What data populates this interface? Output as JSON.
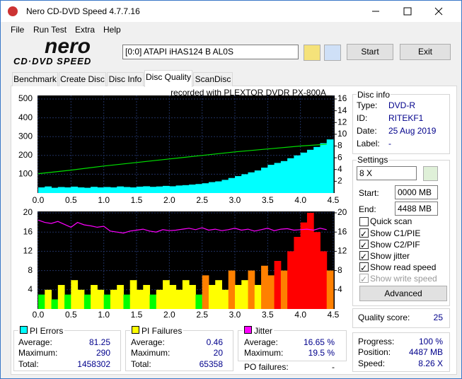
{
  "window": {
    "title": "Nero CD-DVD Speed 4.7.7.16"
  },
  "menu": [
    "File",
    "Run Test",
    "Extra",
    "Help"
  ],
  "toolbar": {
    "logo_top": "nero",
    "logo_bottom": "CD·DVD SPEED",
    "drive": "[0:0]  ATAPI iHAS124  B AL0S",
    "start": "Start",
    "exit": "Exit"
  },
  "tabs": [
    "Benchmark",
    "Create Disc",
    "Disc Info",
    "Disc Quality",
    "ScanDisc"
  ],
  "chart_data": [
    {
      "type": "combo",
      "title": "recorded with PLEXTOR  DVDR   PX-800A",
      "x": [
        0,
        0.1,
        0.2,
        0.3,
        0.4,
        0.5,
        0.6,
        0.7,
        0.8,
        0.9,
        1,
        1.1,
        1.2,
        1.3,
        1.4,
        1.5,
        1.6,
        1.7,
        1.8,
        1.9,
        2,
        2.1,
        2.2,
        2.3,
        2.4,
        2.5,
        2.6,
        2.7,
        2.8,
        2.9,
        3,
        3.1,
        3.2,
        3.3,
        3.4,
        3.5,
        3.6,
        3.7,
        3.8,
        3.9,
        4,
        4.1,
        4.2,
        4.3,
        4.4
      ],
      "series": [
        {
          "type": "bar",
          "color": "#00ffff",
          "values": [
            30,
            35,
            28,
            32,
            30,
            34,
            30,
            28,
            33,
            30,
            32,
            30,
            35,
            32,
            30,
            34,
            36,
            33,
            35,
            38,
            36,
            40,
            42,
            45,
            48,
            52,
            58,
            62,
            70,
            80,
            90,
            100,
            110,
            120,
            135,
            150,
            160,
            170,
            185,
            200,
            215,
            230,
            245,
            265,
            285
          ]
        },
        {
          "type": "line",
          "color": "#00e000",
          "axis": "y2",
          "x": [
            0,
            0.5,
            1,
            1.5,
            2,
            2.5,
            3,
            3.5,
            4,
            4.4
          ],
          "values": [
            3.3,
            3.9,
            4.6,
            5.2,
            5.8,
            6.4,
            7.0,
            7.5,
            8.0,
            8.3
          ]
        }
      ],
      "xlim": [
        0,
        4.5
      ],
      "xticks": [
        {
          "value": 0,
          "label": "0.0"
        },
        0.5,
        {
          "value": 1,
          "label": "1.0"
        },
        1.5,
        {
          "value": 2,
          "label": "2.0"
        },
        2.5,
        {
          "value": 3,
          "label": "3.0"
        },
        3.5,
        {
          "value": 4,
          "label": "4.0"
        },
        4.5
      ],
      "ylim": [
        0,
        500
      ],
      "yticks": [
        100,
        200,
        300,
        400,
        500
      ],
      "y2lim": [
        0,
        16
      ],
      "y2ticks": [
        2,
        4,
        6,
        8,
        10,
        12,
        14,
        16
      ],
      "grid": true
    },
    {
      "type": "combo",
      "x": [
        0,
        0.1,
        0.2,
        0.3,
        0.4,
        0.5,
        0.6,
        0.7,
        0.8,
        0.9,
        1,
        1.1,
        1.2,
        1.3,
        1.4,
        1.5,
        1.6,
        1.7,
        1.8,
        1.9,
        2,
        2.1,
        2.2,
        2.3,
        2.4,
        2.5,
        2.6,
        2.7,
        2.8,
        2.9,
        3,
        3.1,
        3.2,
        3.3,
        3.4,
        3.5,
        3.6,
        3.7,
        3.8,
        3.9,
        4,
        4.1,
        4.2,
        4.3,
        4.4
      ],
      "series": [
        {
          "type": "bar",
          "colors": [
            "#00ff00",
            "#ffff00",
            "#ff8000",
            "#ff0000"
          ],
          "values": [
            3,
            4,
            2,
            5,
            3,
            6,
            4,
            3,
            5,
            4,
            3,
            4,
            5,
            3,
            6,
            4,
            5,
            3,
            4,
            6,
            5,
            4,
            6,
            5,
            3,
            7,
            5,
            6,
            4,
            8,
            5,
            6,
            8,
            5,
            9,
            7,
            10,
            8,
            12,
            15,
            18,
            20,
            16,
            12,
            8
          ]
        },
        {
          "type": "line",
          "color": "#ff00ff",
          "axis": "y2",
          "values": [
            18.5,
            18.0,
            17.8,
            18.2,
            17.6,
            17.0,
            18.0,
            17.5,
            17.3,
            17.0,
            17.2,
            16.2,
            16.0,
            15.8,
            16.2,
            16.4,
            16.6,
            16.2,
            16.0,
            16.5,
            16.3,
            16.4,
            16.6,
            16.8,
            16.5,
            16.9,
            16.4,
            16.6,
            16.3,
            16.5,
            16.8,
            16.4,
            16.6,
            16.2,
            16.5,
            16.8,
            16.3,
            16.6,
            16.7,
            16.4,
            16.5,
            16.6,
            16.4,
            16.8,
            16.5
          ]
        }
      ],
      "xlim": [
        0,
        4.5
      ],
      "xticks": [
        {
          "value": 0,
          "label": "0.0"
        },
        0.5,
        {
          "value": 1,
          "label": "1.0"
        },
        1.5,
        {
          "value": 2,
          "label": "2.0"
        },
        2.5,
        {
          "value": 3,
          "label": "3.0"
        },
        3.5,
        {
          "value": 4,
          "label": "4.0"
        },
        4.5
      ],
      "ylim": [
        0,
        20
      ],
      "yticks": [
        4,
        8,
        12,
        16,
        20
      ],
      "y2lim": [
        0,
        20
      ],
      "y2ticks": [
        4,
        8,
        12,
        16,
        20
      ],
      "grid": true
    }
  ],
  "disc_info": {
    "heading": "Disc info",
    "rows": [
      [
        "Type:",
        "DVD-R"
      ],
      [
        "ID:",
        "RITEKF1"
      ],
      [
        "Date:",
        "25 Aug 2019"
      ],
      [
        "Label:",
        "-"
      ]
    ]
  },
  "settings": {
    "heading": "Settings",
    "speed": "8 X",
    "start_label": "Start:",
    "start": "0000 MB",
    "end_label": "End:",
    "end": "4488 MB",
    "checks": [
      "Quick scan",
      "Show C1/PIE",
      "Show C2/PIF",
      "Show jitter",
      "Show read speed",
      "Show write speed"
    ],
    "advanced": "Advanced"
  },
  "quality": {
    "label": "Quality score:",
    "value": 25
  },
  "progress": {
    "rows": [
      [
        "Progress:",
        "100 %"
      ],
      [
        "Position:",
        "4487 MB"
      ],
      [
        "Speed:",
        "8.26 X"
      ]
    ]
  },
  "stats": [
    {
      "title": "PI Errors",
      "rows": [
        [
          "Average:",
          81.25
        ],
        [
          "Maximum:",
          290
        ],
        [
          "Total:",
          1458302
        ]
      ]
    },
    {
      "title": "PI Failures",
      "rows": [
        [
          "Average:",
          0.46
        ],
        [
          "Maximum:",
          20
        ],
        [
          "Total:",
          65358
        ]
      ]
    },
    {
      "title": "Jitter",
      "rows": [
        [
          "Average:",
          "16.65 %"
        ],
        [
          "Maximum:",
          "19.5 %"
        ]
      ]
    }
  ],
  "po_failures": {
    "label": "PO failures:",
    "value": "-"
  }
}
